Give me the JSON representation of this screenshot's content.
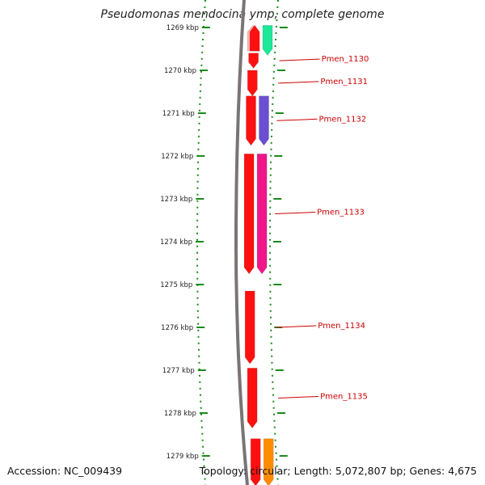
{
  "title": "Pseudomonas mendocina ymp, complete genome",
  "footer": {
    "accession": "Accession: NC_009439",
    "summary": "Topology: circular; Length: 5,072,807 bp; Genes: 4,675"
  },
  "axis": {
    "unit": "kbp",
    "ticks": [
      "1269 kbp",
      "1270 kbp",
      "1271 kbp",
      "1272 kbp",
      "1273 kbp",
      "1274 kbp",
      "1275 kbp",
      "1276 kbp",
      "1277 kbp",
      "1278 kbp",
      "1279 kbp"
    ]
  },
  "colors": {
    "backbone": "#7a7475",
    "tick": "#1a8a1a",
    "gene_primary": "#ff0000",
    "label": "#cc0000"
  },
  "genes": [
    {
      "label": "",
      "start": 1268.95,
      "end": 1269.55,
      "strand": "-",
      "track": "outer",
      "color": "#ffb3b3"
    },
    {
      "label": "",
      "start": 1268.95,
      "end": 1269.55,
      "strand": "-",
      "track": "inner",
      "color": "#ff1010"
    },
    {
      "label": "",
      "start": 1268.95,
      "end": 1269.65,
      "strand": "+",
      "track": "feature",
      "color": "#1de89a"
    },
    {
      "label": "Pmen_1130",
      "start": 1269.6,
      "end": 1269.95,
      "strand": "+",
      "track": "inner",
      "color": "#ff1010"
    },
    {
      "label": "Pmen_1131",
      "start": 1270.0,
      "end": 1270.6,
      "strand": "+",
      "track": "inner",
      "color": "#ff1010"
    },
    {
      "label": "Pmen_1132",
      "start": 1270.6,
      "end": 1271.75,
      "strand": "+",
      "track": "inner",
      "color": "#ff1010"
    },
    {
      "label": "",
      "start": 1270.6,
      "end": 1271.75,
      "strand": "+",
      "track": "feature",
      "color": "#6a4fd0"
    },
    {
      "label": "Pmen_1133",
      "start": 1271.95,
      "end": 1274.75,
      "strand": "+",
      "track": "inner",
      "color": "#ff1010"
    },
    {
      "label": "",
      "start": 1271.95,
      "end": 1274.75,
      "strand": "+",
      "track": "feature",
      "color": "#f0168a"
    },
    {
      "label": "Pmen_1134",
      "start": 1275.15,
      "end": 1276.85,
      "strand": "+",
      "track": "inner",
      "color": "#ff1010"
    },
    {
      "label": "Pmen_1135",
      "start": 1276.95,
      "end": 1278.35,
      "strand": "+",
      "track": "inner",
      "color": "#ff1010"
    },
    {
      "label": "",
      "start": 1278.6,
      "end": 1279.7,
      "strand": "+",
      "track": "inner",
      "color": "#ff1010"
    },
    {
      "label": "",
      "start": 1278.6,
      "end": 1279.7,
      "strand": "+",
      "track": "feature",
      "color": "#ff8c00"
    }
  ]
}
